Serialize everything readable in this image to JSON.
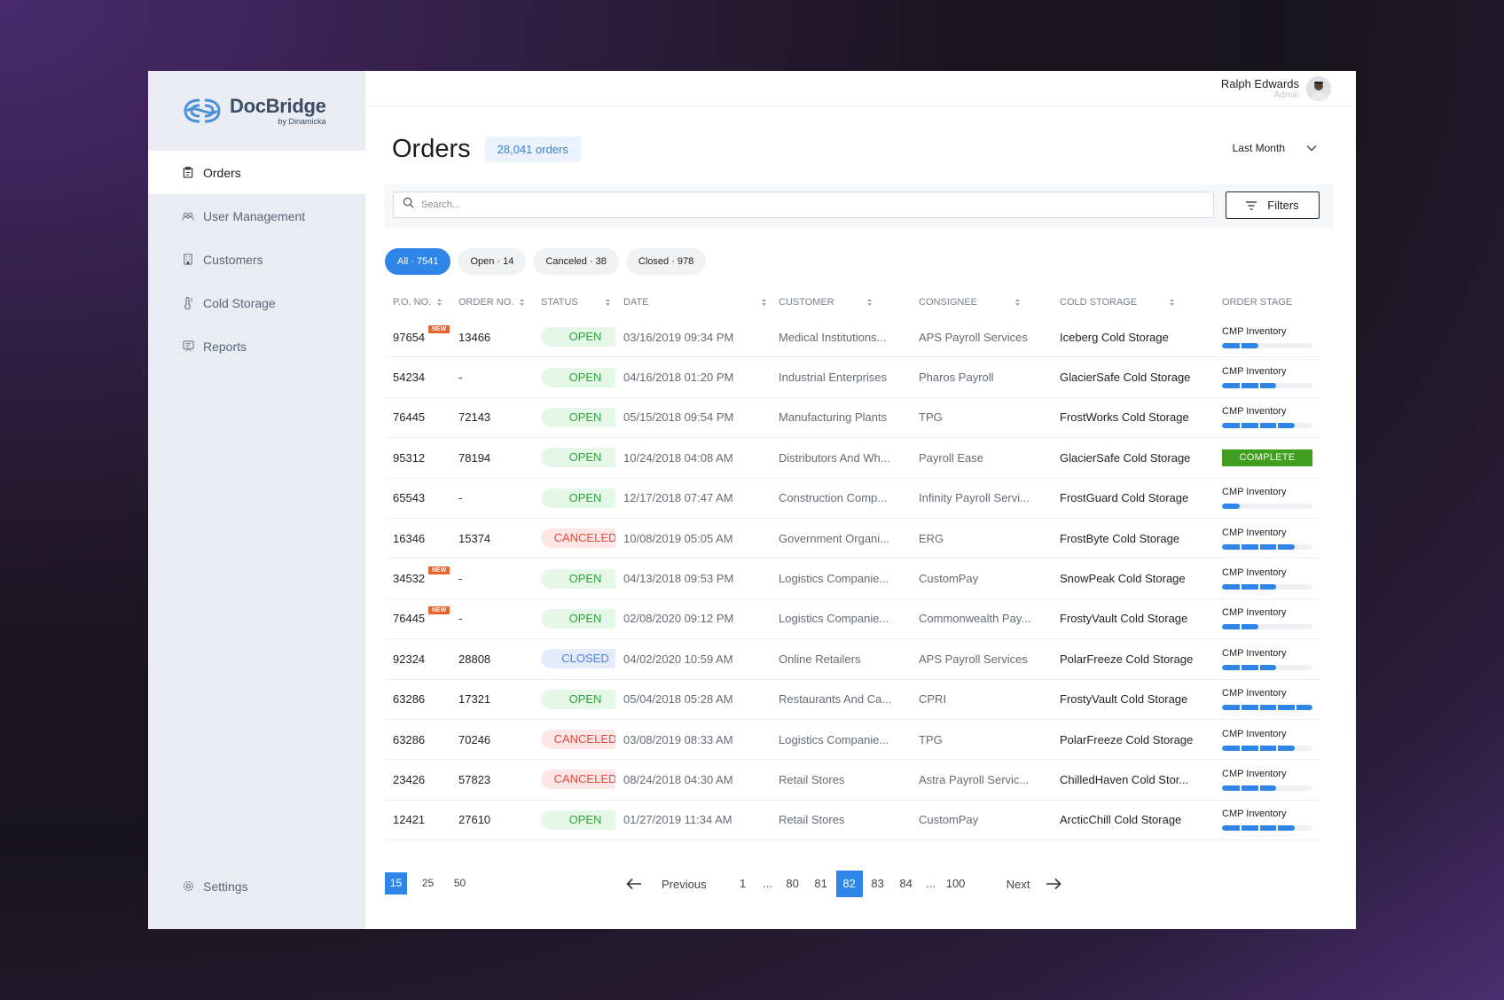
{
  "brand": {
    "name": "DocBridge",
    "sub": "by Dinamicka"
  },
  "sidebar": {
    "items": [
      {
        "label": "Orders",
        "icon": "clipboard-icon",
        "active": true
      },
      {
        "label": "User Management",
        "icon": "users-icon"
      },
      {
        "label": "Customers",
        "icon": "building-icon"
      },
      {
        "label": "Cold Storage",
        "icon": "thermometer-icon"
      },
      {
        "label": "Reports",
        "icon": "report-icon"
      }
    ],
    "settings_label": "Settings"
  },
  "user": {
    "name": "Ralph Edwards",
    "role": "Admin"
  },
  "header": {
    "title": "Orders",
    "count": "28,041 orders",
    "period": "Last Month"
  },
  "search": {
    "placeholder": "Search..."
  },
  "filters_label": "Filters",
  "chips": [
    {
      "label": "All · 7541",
      "active": true
    },
    {
      "label": "Open · 14"
    },
    {
      "label": "Canceled · 38"
    },
    {
      "label": "Closed · 978"
    }
  ],
  "table": {
    "columns": [
      "P.O. NO.",
      "ORDER NO.",
      "STATUS",
      "DATE",
      "CUSTOMER",
      "CONSIGNEE",
      "COLD STORAGE",
      "ORDER STAGE"
    ],
    "new_label": "NEW",
    "stage_label": "CMP Inventory",
    "complete_label": "COMPLETE",
    "rows": [
      {
        "po": "97654",
        "new": true,
        "order": "13466",
        "status": "OPEN",
        "date": "03/16/2019 09:34 PM",
        "customer": "Medical Institutions...",
        "consignee": "APS Payroll Services",
        "storage": "Iceberg Cold Storage",
        "progress": 0.4
      },
      {
        "po": "54234",
        "new": false,
        "order": "-",
        "status": "OPEN",
        "date": "04/16/2018 01:20 PM",
        "customer": "Industrial Enterprises",
        "consignee": "Pharos Payroll",
        "storage": "GlacierSafe Cold Storage",
        "progress": 0.6
      },
      {
        "po": "76445",
        "new": false,
        "order": "72143",
        "status": "OPEN",
        "date": "05/15/2018 09:54 PM",
        "customer": "Manufacturing Plants",
        "consignee": "TPG",
        "storage": "FrostWorks Cold Storage",
        "progress": 0.8
      },
      {
        "po": "95312",
        "new": false,
        "order": "78194",
        "status": "OPEN",
        "date": "10/24/2018 04:08 AM",
        "customer": "Distributors And Wh...",
        "consignee": "Payroll Ease",
        "storage": "GlacierSafe Cold Storage",
        "progress": 1.0,
        "complete": true
      },
      {
        "po": "65543",
        "new": false,
        "order": "-",
        "status": "OPEN",
        "date": "12/17/2018 07:47 AM",
        "customer": "Construction Comp...",
        "consignee": "Infinity Payroll Servi...",
        "storage": "FrostGuard Cold Storage",
        "progress": 0.2
      },
      {
        "po": "16346",
        "new": false,
        "order": "15374",
        "status": "CANCELED",
        "date": "10/08/2019 05:05 AM",
        "customer": "Government Organi...",
        "consignee": "ERG",
        "storage": "FrostByte Cold Storage",
        "progress": 0.8
      },
      {
        "po": "34532",
        "new": true,
        "order": "-",
        "status": "OPEN",
        "date": "04/13/2018 09:53 PM",
        "customer": "Logistics Companie...",
        "consignee": "CustomPay",
        "storage": "SnowPeak Cold Storage",
        "progress": 0.6
      },
      {
        "po": "76445",
        "new": true,
        "order": "-",
        "status": "OPEN",
        "date": "02/08/2020 09:12 PM",
        "customer": "Logistics Companie...",
        "consignee": "Commonwealth Pay...",
        "storage": "FrostyVault Cold Storage",
        "progress": 0.4
      },
      {
        "po": "92324",
        "new": false,
        "order": "28808",
        "status": "CLOSED",
        "date": "04/02/2020 10:59 AM",
        "customer": "Online Retailers",
        "consignee": "APS Payroll Services",
        "storage": "PolarFreeze Cold Storage",
        "progress": 0.6
      },
      {
        "po": "63286",
        "new": false,
        "order": "17321",
        "status": "OPEN",
        "date": "05/04/2018 05:28 AM",
        "customer": "Restaurants And Ca...",
        "consignee": "CPRI",
        "storage": "FrostyVault Cold Storage",
        "progress": 1.0
      },
      {
        "po": "63286",
        "new": false,
        "order": "70246",
        "status": "CANCELED",
        "date": "03/08/2019 08:33 AM",
        "customer": "Logistics Companie...",
        "consignee": "TPG",
        "storage": "PolarFreeze Cold Storage",
        "progress": 0.8
      },
      {
        "po": "23426",
        "new": false,
        "order": "57823",
        "status": "CANCELED",
        "date": "08/24/2018 04:30 AM",
        "customer": "Retail Stores",
        "consignee": "Astra Payroll Servic...",
        "storage": "ChilledHaven Cold Stor...",
        "progress": 0.6
      },
      {
        "po": "12421",
        "new": false,
        "order": "27610",
        "status": "OPEN",
        "date": "01/27/2019 11:34 AM",
        "customer": "Retail Stores",
        "consignee": "CustomPay",
        "storage": "ArcticChill Cold Storage",
        "progress": 0.8
      }
    ]
  },
  "pagination": {
    "sizes": [
      {
        "label": "15",
        "active": true
      },
      {
        "label": "25"
      },
      {
        "label": "50"
      }
    ],
    "previous_label": "Previous",
    "next_label": "Next",
    "pages": [
      {
        "label": "1"
      },
      {
        "label": "...",
        "dots": true
      },
      {
        "label": "80"
      },
      {
        "label": "81"
      },
      {
        "label": "82",
        "active": true
      },
      {
        "label": "83"
      },
      {
        "label": "84"
      },
      {
        "label": "...",
        "dots": true
      },
      {
        "label": "100"
      }
    ]
  },
  "colors": {
    "accent": "#2f86e8",
    "open": "#2ea33a",
    "canceled": "#e0493f",
    "closed": "#4f7fd9",
    "complete": "#3f9e1d",
    "new_tag": "#e8622a"
  }
}
